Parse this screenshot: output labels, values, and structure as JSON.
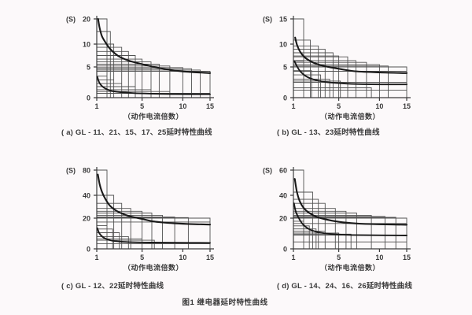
{
  "page": {
    "background_color": "#fcf9fa",
    "figure_caption": "图1  继电器延时特性曲线"
  },
  "shared": {
    "x_axis_label": "（动作电流倍数）",
    "y_unit_label": "(S)",
    "x_ticks": [
      1,
      5,
      10,
      15
    ],
    "grid_line_color": "#525252",
    "axis_color": "#3c3c3c",
    "curve_color": "#191919",
    "text_color": "#3a3a3a"
  },
  "chart_data": [
    {
      "id": "a",
      "type": "line",
      "caption": "( a) GL - 11、21、15、17、25延时特性曲线",
      "xlabel": "（动作电流倍数）",
      "ylabel": "(S)",
      "x_ticks": [
        1,
        5,
        10,
        15
      ],
      "y_ticks": [
        0,
        5,
        10,
        20
      ],
      "xlim": [
        1,
        15
      ],
      "ylim": [
        0,
        20
      ],
      "upper_steps": [
        [
          1.9,
          20
        ],
        [
          2.2,
          15
        ],
        [
          2.5,
          10
        ],
        [
          3.2,
          9.3
        ],
        [
          3.8,
          8.4
        ],
        [
          4.4,
          7.5
        ],
        [
          5.0,
          6.7
        ],
        [
          6.1,
          6.1
        ],
        [
          7.1,
          5.6
        ],
        [
          8.4,
          5.2
        ],
        [
          10,
          4.9
        ],
        [
          11.6,
          4.7
        ],
        [
          13.2,
          4.5
        ],
        [
          15,
          4.3
        ]
      ],
      "lower_steps": [
        [
          1.9,
          3.5
        ],
        [
          2.5,
          2.9
        ],
        [
          3.2,
          2.3
        ],
        [
          4.4,
          1.8
        ],
        [
          6.1,
          1.3
        ],
        [
          8.4,
          1.0
        ],
        [
          15,
          0.7
        ]
      ],
      "series": [
        {
          "name": "upper-curve",
          "points": [
            [
              1.12,
              20
            ],
            [
              1.25,
              16.5
            ],
            [
              1.45,
              13.2
            ],
            [
              1.75,
              10.8
            ],
            [
              2.2,
              8.9
            ],
            [
              2.9,
              7.4
            ],
            [
              3.8,
              6.4
            ],
            [
              5,
              5.6
            ],
            [
              6.5,
              5.0
            ],
            [
              8.5,
              4.5
            ],
            [
              11,
              4.2
            ],
            [
              15,
              4.0
            ]
          ]
        },
        {
          "name": "lower-curve",
          "points": [
            [
              1.05,
              3.4
            ],
            [
              1.2,
              2.55
            ],
            [
              1.45,
              1.9
            ],
            [
              1.8,
              1.45
            ],
            [
              2.3,
              1.1
            ],
            [
              3.1,
              0.9
            ],
            [
              4.2,
              0.75
            ],
            [
              6,
              0.65
            ],
            [
              9,
              0.58
            ],
            [
              15,
              0.55
            ]
          ]
        }
      ]
    },
    {
      "id": "b",
      "type": "line",
      "caption": "( b) GL - 13、23延时特性曲线",
      "xlabel": "（动作电流倍数）",
      "ylabel": "(S)",
      "x_ticks": [
        1,
        5,
        10,
        15
      ],
      "y_ticks": [
        0,
        5,
        10,
        15
      ],
      "xlim": [
        1,
        15
      ],
      "ylim": [
        0,
        15
      ],
      "upper_steps": [
        [
          1.9,
          15
        ],
        [
          2.5,
          10.8
        ],
        [
          3.2,
          9.6
        ],
        [
          3.8,
          8.9
        ],
        [
          4.5,
          8.1
        ],
        [
          5.0,
          7.4
        ],
        [
          6.1,
          7.2
        ],
        [
          7.1,
          6.4
        ],
        [
          8.4,
          6.0
        ],
        [
          10,
          5.5
        ],
        [
          11.6,
          5.2
        ],
        [
          15,
          5.0
        ],
        [
          15,
          4.3
        ]
      ],
      "lower_steps": [
        [
          1.9,
          6.3
        ],
        [
          2.6,
          4.4
        ],
        [
          3.4,
          3.7
        ],
        [
          4.2,
          3.0
        ],
        [
          5.2,
          2.7
        ],
        [
          15,
          2.5
        ],
        [
          9,
          1.6
        ],
        [
          15,
          1.2
        ]
      ],
      "series": [
        {
          "name": "upper-curve",
          "points": [
            [
              1.15,
              11.3
            ],
            [
              1.35,
              9.6
            ],
            [
              1.65,
              8.1
            ],
            [
              2.1,
              6.9
            ],
            [
              2.8,
              5.9
            ],
            [
              3.7,
              5.2
            ],
            [
              5,
              4.7
            ],
            [
              7,
              4.3
            ],
            [
              10,
              4.1
            ],
            [
              15,
              4.0
            ]
          ]
        },
        {
          "name": "lower-curve",
          "points": [
            [
              1.08,
              6.3
            ],
            [
              1.3,
              5.2
            ],
            [
              1.6,
              4.3
            ],
            [
              2.1,
              3.5
            ],
            [
              2.8,
              2.95
            ],
            [
              3.8,
              2.55
            ],
            [
              5.2,
              2.35
            ],
            [
              7.5,
              2.2
            ],
            [
              15,
              2.15
            ]
          ]
        }
      ]
    },
    {
      "id": "c",
      "type": "line",
      "caption": "( c) GL - 12、22延时特性曲线",
      "xlabel": "（动作电流倍数）",
      "ylabel": "(S)",
      "x_ticks": [
        1,
        5,
        10,
        15
      ],
      "y_ticks": [
        0,
        20,
        40,
        80
      ],
      "xlim": [
        1,
        15
      ],
      "ylim": [
        0,
        80
      ],
      "upper_steps": [
        [
          1.9,
          80
        ],
        [
          2.5,
          40
        ],
        [
          3.2,
          33
        ],
        [
          4.0,
          28.5
        ],
        [
          5.0,
          26
        ],
        [
          6.2,
          24.5
        ],
        [
          7.5,
          22.5
        ],
        [
          9.0,
          21
        ],
        [
          11,
          20.5
        ],
        [
          15,
          20
        ],
        [
          15,
          17.5
        ]
      ],
      "lower_steps": [
        [
          1.9,
          15.2
        ],
        [
          2.4,
          12.9
        ],
        [
          3.0,
          10.5
        ],
        [
          3.8,
          8.0
        ],
        [
          5.0,
          6.5
        ],
        [
          6.5,
          5.6
        ],
        [
          15,
          3.3
        ]
      ],
      "series": [
        {
          "name": "upper-curve",
          "points": [
            [
              1.1,
              73
            ],
            [
              1.25,
              58
            ],
            [
              1.45,
              46
            ],
            [
              1.75,
              37
            ],
            [
              2.2,
              30.5
            ],
            [
              2.9,
              25.5
            ],
            [
              3.8,
              22
            ],
            [
              5,
              19.5
            ],
            [
              6.5,
              17.8
            ],
            [
              8.5,
              16.8
            ],
            [
              11,
              16.2
            ],
            [
              15,
              15.8
            ]
          ]
        },
        {
          "name": "lower-curve",
          "points": [
            [
              1.05,
              13.5
            ],
            [
              1.2,
              10.5
            ],
            [
              1.45,
              8.2
            ],
            [
              1.8,
              6.5
            ],
            [
              2.3,
              5.4
            ],
            [
              3.1,
              4.7
            ],
            [
              4.2,
              4.3
            ],
            [
              6,
              4.1
            ],
            [
              9,
              4.0
            ],
            [
              15,
              3.9
            ]
          ]
        }
      ]
    },
    {
      "id": "d",
      "type": "line",
      "caption": "( d) GL - 14、24、16、26延时特性曲线",
      "xlabel": "（动作电流倍数）",
      "ylabel": "(S)",
      "x_ticks": [
        1,
        5,
        10,
        15
      ],
      "y_ticks": [
        0,
        20,
        40,
        60
      ],
      "xlim": [
        1,
        15
      ],
      "ylim": [
        0,
        60
      ],
      "upper_steps": [
        [
          1.9,
          60
        ],
        [
          2.7,
          42.5
        ],
        [
          3.2,
          36.5
        ],
        [
          3.8,
          33
        ],
        [
          4.7,
          28.5
        ],
        [
          5.9,
          26
        ],
        [
          7.2,
          24.5
        ],
        [
          9.0,
          22.5
        ],
        [
          11,
          21.5
        ],
        [
          13,
          20.7
        ],
        [
          15,
          20
        ],
        [
          15,
          16.5
        ]
      ],
      "lower_steps": [
        [
          1.9,
          18
        ],
        [
          2.4,
          15
        ],
        [
          3.0,
          13
        ],
        [
          3.8,
          11.5
        ],
        [
          5.0,
          10.3
        ],
        [
          6.5,
          9.6
        ],
        [
          15,
          9
        ],
        [
          15,
          4.5
        ]
      ],
      "series": [
        {
          "name": "upper-curve",
          "points": [
            [
              1.12,
              53
            ],
            [
              1.3,
              43
            ],
            [
              1.55,
              35
            ],
            [
              1.9,
              29
            ],
            [
              2.4,
              24.5
            ],
            [
              3.1,
              21
            ],
            [
              4.1,
              18.8
            ],
            [
              5.5,
              17.3
            ],
            [
              7.5,
              16.4
            ],
            [
              10,
              16
            ],
            [
              15,
              15.7
            ]
          ]
        },
        {
          "name": "lower-curve",
          "points": [
            [
              1.05,
              33
            ],
            [
              1.2,
              26
            ],
            [
              1.45,
              20.5
            ],
            [
              1.8,
              16.3
            ],
            [
              2.3,
              13.2
            ],
            [
              3.0,
              11.2
            ],
            [
              4.0,
              9.9
            ],
            [
              5.5,
              9.2
            ],
            [
              8,
              8.9
            ],
            [
              15,
              8.7
            ]
          ]
        }
      ]
    }
  ]
}
